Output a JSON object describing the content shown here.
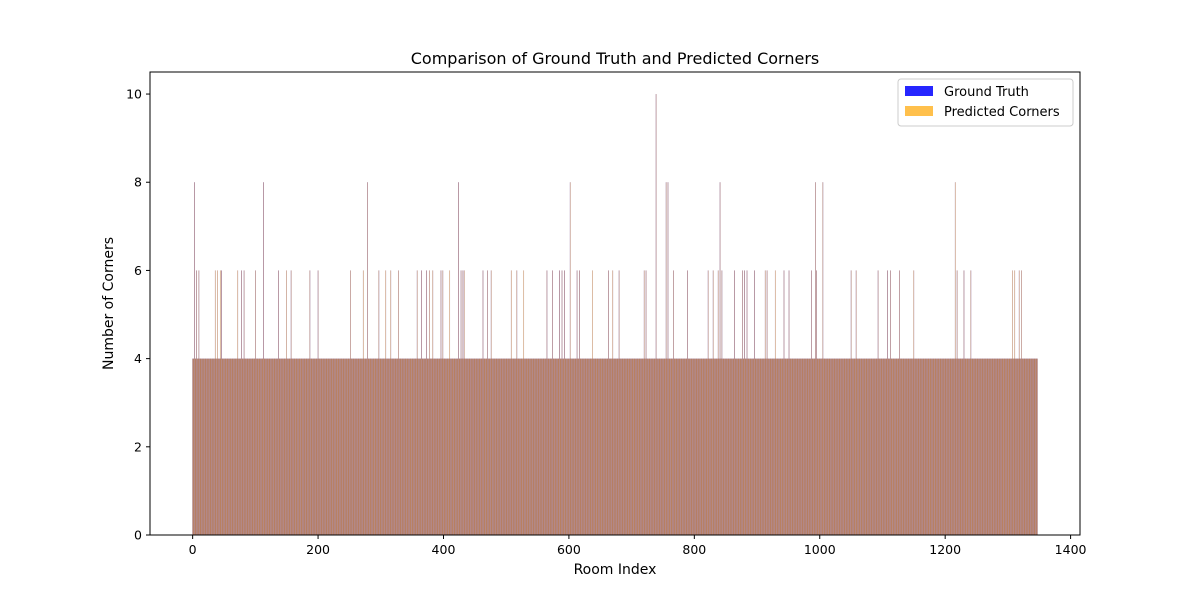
{
  "chart_data": {
    "type": "bar",
    "title": "Comparison of Ground Truth and Predicted Corners",
    "xlabel": "Room Index",
    "ylabel": "Number of Corners",
    "xlim": [
      -68,
      1415
    ],
    "ylim": [
      0,
      10.5
    ],
    "xticks": [
      0,
      200,
      400,
      600,
      800,
      1000,
      1200,
      1400
    ],
    "yticks": [
      0,
      2,
      4,
      6,
      8,
      10
    ],
    "grid": false,
    "legend_position": "top-right",
    "bar_count": 1348,
    "default_value": 4,
    "series": [
      {
        "name": "Ground Truth",
        "color": "#0000ff",
        "alpha": 0.85
      },
      {
        "name": "Predicted Corners",
        "color": "#ffa500",
        "alpha": 0.7
      }
    ],
    "nondefault_values": {
      "3": 8,
      "6": 6,
      "10": 6,
      "36": 6,
      "40": 6,
      "44": 6,
      "46": 6,
      "72": 6,
      "78": 6,
      "82": 6,
      "100": 6,
      "113": 8,
      "137": 6,
      "150": 6,
      "157": 6,
      "187": 6,
      "200": 6,
      "252": 6,
      "272": 6,
      "279": 8,
      "297": 6,
      "308": 6,
      "316": 6,
      "328": 6,
      "358": 6,
      "365": 6,
      "373": 6,
      "378": 6,
      "383": 6,
      "396": 6,
      "399": 6,
      "410": 6,
      "424": 8,
      "428": 6,
      "431": 6,
      "433": 6,
      "463": 6,
      "470": 6,
      "476": 6,
      "508": 6,
      "517": 6,
      "528": 6,
      "565": 6,
      "574": 6,
      "585": 6,
      "589": 6,
      "593": 6,
      "602": 8,
      "613": 6,
      "617": 6,
      "638": 6,
      "663": 6,
      "670": 6,
      "680": 6,
      "720": 6,
      "723": 6,
      "739": 10,
      "755": 8,
      "758": 8,
      "767": 6,
      "789": 6,
      "822": 6,
      "830": 6,
      "838": 6,
      "841": 8,
      "844": 6,
      "864": 6,
      "877": 6,
      "880": 6,
      "884": 6,
      "896": 6,
      "913": 6,
      "916": 6,
      "929": 6,
      "943": 6,
      "951": 6,
      "987": 6,
      "993": 8,
      "995": 6,
      "1005": 8,
      "1050": 6,
      "1058": 6,
      "1093": 6,
      "1108": 6,
      "1113": 6,
      "1127": 6,
      "1150": 6,
      "1216": 8,
      "1219": 6,
      "1230": 6,
      "1241": 6,
      "1307": 6,
      "1311": 6,
      "1318": 6,
      "1322": 6
    }
  }
}
